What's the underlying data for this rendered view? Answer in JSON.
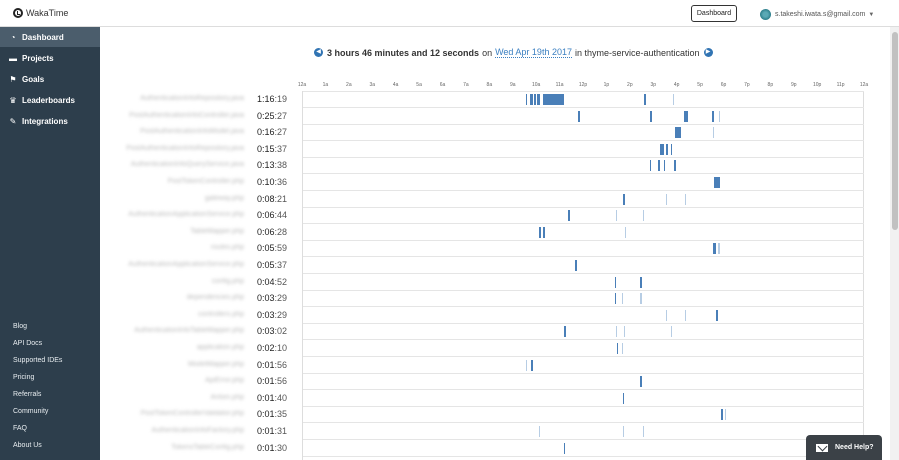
{
  "header": {
    "brand": "WakaTime",
    "dashboard_button": "Dashboard",
    "user_email": "s.takeshi.iwata.s@gmail.com"
  },
  "sidebar": {
    "nav": [
      {
        "label": "Dashboard",
        "icon": "dashboard-icon",
        "active": true
      },
      {
        "label": "Projects",
        "icon": "folder-icon",
        "active": false
      },
      {
        "label": "Goals",
        "icon": "flag-icon",
        "active": false
      },
      {
        "label": "Leaderboards",
        "icon": "trophy-icon",
        "active": false
      },
      {
        "label": "Integrations",
        "icon": "wrench-icon",
        "active": false
      }
    ],
    "footer": [
      "Blog",
      "API Docs",
      "Supported IDEs",
      "Pricing",
      "Referrals",
      "Community",
      "FAQ",
      "About Us"
    ]
  },
  "summary": {
    "duration": "3 hours 46 minutes and 12 seconds",
    "on": "on",
    "date": "Wed Apr 19th 2017",
    "in_text": "in thyme-service-authentication"
  },
  "timeline": {
    "hour_labels": [
      "12a",
      "1a",
      "2a",
      "3a",
      "4a",
      "5a",
      "6a",
      "7a",
      "8a",
      "9a",
      "10a",
      "11a",
      "12p",
      "1p",
      "2p",
      "3p",
      "4p",
      "5p",
      "6p",
      "7p",
      "8p",
      "9p",
      "10p",
      "11p",
      "12a"
    ],
    "accent": "#4a7fb8",
    "files": [
      {
        "name": "AuthenticationInfoRepository.java",
        "hm": "1:16",
        "s": ":19",
        "bars": [
          [
            9.55,
            0.08,
            0
          ],
          [
            9.75,
            0.12,
            0
          ],
          [
            9.92,
            0.06,
            0
          ],
          [
            10.05,
            0.1,
            0
          ],
          [
            10.3,
            0.9,
            0
          ],
          [
            14.6,
            0.1,
            0
          ],
          [
            15.85,
            0.05,
            1
          ]
        ]
      },
      {
        "name": "PostAuthenticationInfoController.java",
        "hm": "0:25",
        "s": ":27",
        "bars": [
          [
            11.8,
            0.06,
            0
          ],
          [
            14.85,
            0.08,
            0
          ],
          [
            16.3,
            0.2,
            0
          ],
          [
            17.5,
            0.08,
            0
          ],
          [
            17.8,
            0.05,
            1
          ]
        ]
      },
      {
        "name": "PostAuthenticationInfoModel.java",
        "hm": "0:16",
        "s": ":27",
        "bars": [
          [
            15.95,
            0.25,
            0
          ],
          [
            17.55,
            0.05,
            1
          ]
        ]
      },
      {
        "name": "PostAuthenticationInfoRepository.java",
        "hm": "0:15",
        "s": ":37",
        "bars": [
          [
            15.3,
            0.15,
            0
          ],
          [
            15.55,
            0.08,
            0
          ],
          [
            15.75,
            0.06,
            0
          ]
        ]
      },
      {
        "name": "AuthenticationInfoQueryService.java",
        "hm": "0:13",
        "s": ":38",
        "bars": [
          [
            14.85,
            0.06,
            0
          ],
          [
            15.2,
            0.08,
            0
          ],
          [
            15.45,
            0.05,
            0
          ],
          [
            15.9,
            0.06,
            0
          ]
        ]
      },
      {
        "name": "PostTokenController.php",
        "hm": "0:10",
        "s": ":36",
        "bars": [
          [
            17.6,
            0.25,
            0
          ]
        ]
      },
      {
        "name": "gateway.php",
        "hm": "0:08",
        "s": ":21",
        "bars": [
          [
            13.7,
            0.1,
            0
          ],
          [
            15.55,
            0.05,
            1
          ],
          [
            16.35,
            0.05,
            1
          ]
        ]
      },
      {
        "name": "AuthenticationApplicationService.php",
        "hm": "0:06",
        "s": ":44",
        "bars": [
          [
            11.35,
            0.1,
            0
          ],
          [
            13.4,
            0.04,
            1
          ],
          [
            14.55,
            0.04,
            1
          ]
        ]
      },
      {
        "name": "TableMapper.php",
        "hm": "0:06",
        "s": ":28",
        "bars": [
          [
            10.1,
            0.1,
            0
          ],
          [
            10.3,
            0.06,
            0
          ],
          [
            13.8,
            0.04,
            1
          ]
        ]
      },
      {
        "name": "routes.php",
        "hm": "0:05",
        "s": ":59",
        "bars": [
          [
            17.55,
            0.12,
            0
          ],
          [
            17.75,
            0.08,
            1
          ]
        ]
      },
      {
        "name": "AuthenticationApplicationService.php",
        "hm": "0:05",
        "s": ":37",
        "bars": [
          [
            11.65,
            0.1,
            0
          ]
        ]
      },
      {
        "name": "config.php",
        "hm": "0:04",
        "s": ":52",
        "bars": [
          [
            13.35,
            0.05,
            0
          ],
          [
            14.45,
            0.06,
            0
          ]
        ]
      },
      {
        "name": "dependencies.php",
        "hm": "0:03",
        "s": ":29",
        "bars": [
          [
            13.35,
            0.05,
            0
          ],
          [
            13.65,
            0.04,
            1
          ],
          [
            14.45,
            0.05,
            1
          ]
        ]
      },
      {
        "name": "controllers.php",
        "hm": "0:03",
        "s": ":29",
        "bars": [
          [
            15.55,
            0.05,
            1
          ],
          [
            16.35,
            0.04,
            1
          ],
          [
            17.7,
            0.06,
            0
          ]
        ]
      },
      {
        "name": "AuthenticationInfoTableMapper.php",
        "hm": "0:03",
        "s": ":02",
        "bars": [
          [
            11.2,
            0.06,
            0
          ],
          [
            13.4,
            0.04,
            1
          ],
          [
            13.75,
            0.05,
            1
          ],
          [
            15.75,
            0.04,
            1
          ]
        ]
      },
      {
        "name": "application.php",
        "hm": "0:02",
        "s": ":10",
        "bars": [
          [
            13.45,
            0.05,
            0
          ],
          [
            13.65,
            0.05,
            1
          ]
        ]
      },
      {
        "name": "ModelMapper.php",
        "hm": "0:01",
        "s": ":56",
        "bars": [
          [
            9.55,
            0.05,
            1
          ],
          [
            9.8,
            0.06,
            0
          ]
        ]
      },
      {
        "name": "ApiError.php",
        "hm": "0:01",
        "s": ":56",
        "bars": [
          [
            14.45,
            0.05,
            0
          ]
        ]
      },
      {
        "name": "Antoin.php",
        "hm": "0:01",
        "s": ":40",
        "bars": [
          [
            13.7,
            0.06,
            0
          ]
        ]
      },
      {
        "name": "PostTokenControllerValidator.php",
        "hm": "0:01",
        "s": ":35",
        "bars": [
          [
            17.9,
            0.06,
            0
          ],
          [
            18.05,
            0.04,
            1
          ]
        ]
      },
      {
        "name": "AuthenticationInfoFactory.php",
        "hm": "0:01",
        "s": ":31",
        "bars": [
          [
            10.1,
            0.04,
            1
          ],
          [
            13.7,
            0.04,
            1
          ],
          [
            14.55,
            0.04,
            1
          ]
        ]
      },
      {
        "name": "TokensTableConfig.php",
        "hm": "0:01",
        "s": ":30",
        "bars": [
          [
            11.2,
            0.05,
            0
          ]
        ]
      }
    ]
  },
  "help_label": "Need Help?"
}
